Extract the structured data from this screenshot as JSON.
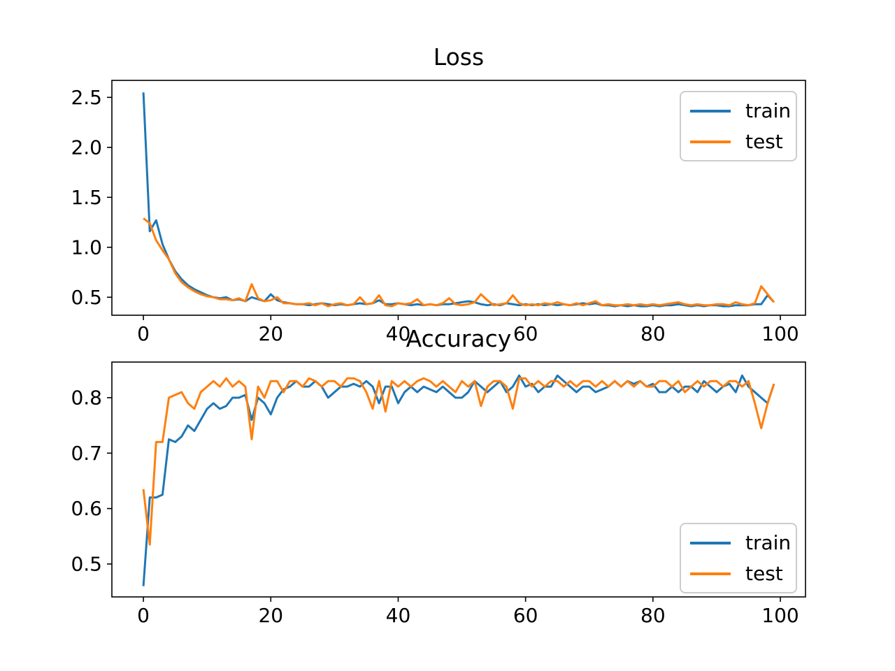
{
  "figure": {
    "background": "#ffffff",
    "text_color": "#000000"
  },
  "chart_data": [
    {
      "type": "line",
      "title": "Loss",
      "xlabel": "",
      "ylabel": "",
      "grid": false,
      "legend_position": "upper right",
      "xlim": [
        -4.95,
        103.95
      ],
      "ylim": [
        0.32,
        2.67
      ],
      "xticks": [
        0,
        20,
        40,
        60,
        80,
        100
      ],
      "yticks": [
        0.5,
        1.0,
        1.5,
        2.0,
        2.5
      ],
      "x_start": 0,
      "x_step": 1,
      "series": [
        {
          "name": "train",
          "color": "#1f77b4",
          "values": [
            2.55,
            1.16,
            1.27,
            1.03,
            0.88,
            0.76,
            0.68,
            0.62,
            0.58,
            0.55,
            0.52,
            0.5,
            0.49,
            0.5,
            0.47,
            0.48,
            0.46,
            0.5,
            0.48,
            0.46,
            0.53,
            0.47,
            0.45,
            0.44,
            0.43,
            0.43,
            0.42,
            0.43,
            0.44,
            0.43,
            0.42,
            0.43,
            0.42,
            0.43,
            0.44,
            0.43,
            0.44,
            0.47,
            0.43,
            0.43,
            0.44,
            0.43,
            0.42,
            0.43,
            0.42,
            0.43,
            0.42,
            0.43,
            0.43,
            0.44,
            0.45,
            0.46,
            0.45,
            0.43,
            0.42,
            0.43,
            0.42,
            0.44,
            0.43,
            0.42,
            0.43,
            0.42,
            0.43,
            0.42,
            0.43,
            0.42,
            0.43,
            0.42,
            0.43,
            0.44,
            0.43,
            0.44,
            0.42,
            0.42,
            0.41,
            0.42,
            0.41,
            0.42,
            0.41,
            0.41,
            0.42,
            0.41,
            0.42,
            0.42,
            0.43,
            0.42,
            0.41,
            0.42,
            0.41,
            0.42,
            0.42,
            0.41,
            0.41,
            0.42,
            0.42,
            0.42,
            0.43,
            0.43,
            0.52,
            0.45
          ]
        },
        {
          "name": "test",
          "color": "#ff7f0e",
          "values": [
            1.29,
            1.24,
            1.07,
            0.97,
            0.88,
            0.74,
            0.65,
            0.6,
            0.56,
            0.53,
            0.51,
            0.5,
            0.48,
            0.48,
            0.47,
            0.49,
            0.46,
            0.63,
            0.49,
            0.46,
            0.47,
            0.5,
            0.44,
            0.44,
            0.43,
            0.43,
            0.44,
            0.42,
            0.44,
            0.41,
            0.43,
            0.44,
            0.42,
            0.43,
            0.5,
            0.43,
            0.44,
            0.52,
            0.42,
            0.41,
            0.44,
            0.43,
            0.44,
            0.48,
            0.42,
            0.43,
            0.42,
            0.44,
            0.49,
            0.43,
            0.42,
            0.43,
            0.45,
            0.53,
            0.47,
            0.42,
            0.43,
            0.44,
            0.52,
            0.44,
            0.42,
            0.43,
            0.42,
            0.44,
            0.43,
            0.45,
            0.43,
            0.42,
            0.44,
            0.42,
            0.44,
            0.46,
            0.42,
            0.43,
            0.42,
            0.42,
            0.43,
            0.42,
            0.43,
            0.42,
            0.43,
            0.42,
            0.43,
            0.44,
            0.45,
            0.43,
            0.42,
            0.43,
            0.42,
            0.42,
            0.43,
            0.43,
            0.42,
            0.45,
            0.43,
            0.42,
            0.44,
            0.61,
            0.53,
            0.45
          ]
        }
      ]
    },
    {
      "type": "line",
      "title": "Accuracy",
      "xlabel": "",
      "ylabel": "",
      "grid": false,
      "legend_position": "lower right",
      "xlim": [
        -4.95,
        103.95
      ],
      "ylim": [
        0.4406,
        0.8643
      ],
      "xticks": [
        0,
        20,
        40,
        60,
        80,
        100
      ],
      "yticks": [
        0.5,
        0.6,
        0.7,
        0.8
      ],
      "x_start": 0,
      "x_step": 1,
      "series": [
        {
          "name": "train",
          "color": "#1f77b4",
          "values": [
            0.46,
            0.62,
            0.62,
            0.625,
            0.725,
            0.72,
            0.73,
            0.75,
            0.74,
            0.76,
            0.78,
            0.79,
            0.78,
            0.785,
            0.8,
            0.8,
            0.805,
            0.76,
            0.8,
            0.79,
            0.77,
            0.8,
            0.815,
            0.82,
            0.83,
            0.82,
            0.82,
            0.83,
            0.82,
            0.8,
            0.81,
            0.82,
            0.82,
            0.825,
            0.82,
            0.83,
            0.82,
            0.79,
            0.82,
            0.82,
            0.79,
            0.81,
            0.82,
            0.81,
            0.82,
            0.815,
            0.81,
            0.82,
            0.81,
            0.8,
            0.8,
            0.81,
            0.83,
            0.82,
            0.81,
            0.82,
            0.83,
            0.81,
            0.82,
            0.84,
            0.82,
            0.825,
            0.81,
            0.82,
            0.82,
            0.84,
            0.83,
            0.82,
            0.81,
            0.82,
            0.82,
            0.81,
            0.815,
            0.82,
            0.83,
            0.82,
            0.83,
            0.825,
            0.83,
            0.82,
            0.825,
            0.81,
            0.81,
            0.82,
            0.81,
            0.82,
            0.82,
            0.81,
            0.83,
            0.82,
            0.81,
            0.82,
            0.825,
            0.81,
            0.84,
            0.82,
            0.81,
            0.8,
            0.79,
            0.825
          ]
        },
        {
          "name": "test",
          "color": "#ff7f0e",
          "values": [
            0.635,
            0.535,
            0.72,
            0.72,
            0.8,
            0.805,
            0.81,
            0.79,
            0.78,
            0.81,
            0.82,
            0.83,
            0.82,
            0.835,
            0.82,
            0.83,
            0.82,
            0.725,
            0.82,
            0.8,
            0.83,
            0.83,
            0.81,
            0.83,
            0.83,
            0.82,
            0.835,
            0.83,
            0.82,
            0.83,
            0.83,
            0.82,
            0.835,
            0.835,
            0.83,
            0.81,
            0.78,
            0.83,
            0.775,
            0.83,
            0.82,
            0.83,
            0.82,
            0.83,
            0.835,
            0.83,
            0.82,
            0.83,
            0.82,
            0.81,
            0.83,
            0.82,
            0.83,
            0.785,
            0.82,
            0.83,
            0.83,
            0.82,
            0.78,
            0.835,
            0.835,
            0.82,
            0.83,
            0.82,
            0.83,
            0.83,
            0.82,
            0.83,
            0.82,
            0.83,
            0.83,
            0.82,
            0.83,
            0.82,
            0.83,
            0.82,
            0.83,
            0.82,
            0.83,
            0.82,
            0.82,
            0.83,
            0.83,
            0.82,
            0.83,
            0.81,
            0.82,
            0.83,
            0.82,
            0.83,
            0.83,
            0.82,
            0.83,
            0.83,
            0.82,
            0.83,
            0.79,
            0.745,
            0.79,
            0.825
          ]
        }
      ]
    }
  ]
}
